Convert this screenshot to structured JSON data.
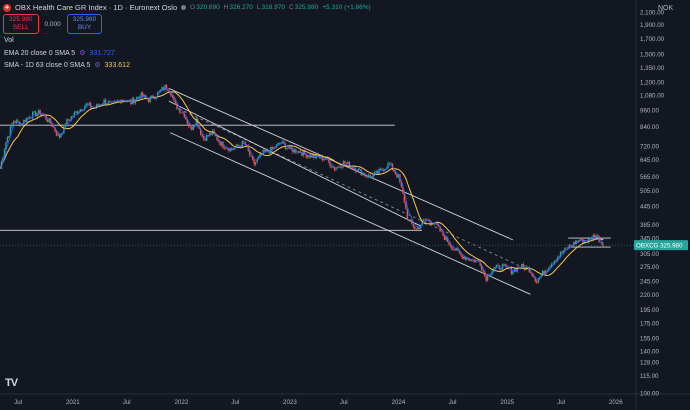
{
  "header": {
    "symbol_title": "OBX Health Care GR Index · 1D · Euronext Oslo",
    "ohlc": [
      {
        "label": "O",
        "value": "320.690"
      },
      {
        "label": "H",
        "value": "326.270"
      },
      {
        "label": "L",
        "value": "318.970"
      },
      {
        "label": "C",
        "value": "325.980"
      }
    ],
    "change": "+5.310 (+1.66%)",
    "sell_price": "325.980",
    "sell_label": "SELL",
    "spread": "0.000",
    "buy_price": "325.980",
    "buy_label": "BUY"
  },
  "indicators": {
    "vol_label": "Vol",
    "ema_label": "EMA 20 close 0 SMA 5",
    "ema_value": "331.727",
    "sma_label": "SMA - 1D 63 close 0 SMA 5",
    "sma_value": "333.612"
  },
  "price_axis": {
    "currency": "NOK"
  },
  "last_price": {
    "ticker": "OBXCG",
    "value": "325.980"
  },
  "colors": {
    "background": "#131722",
    "candle_up": "#26a69a",
    "candle_down": "#ef5350",
    "ema": "#2962ff",
    "sma": "#f7c948",
    "lines": "#d1d4dc",
    "text": "#b2b5be"
  },
  "chart_data": {
    "type": "candlestick",
    "title": "OBX Health Care GR Index · 1D · Euronext Oslo",
    "y_scale": "log",
    "ylim": [
      100,
      2100
    ],
    "xlim": [
      "2020-05-01",
      "2026-03-10"
    ],
    "y_ticks": [
      "2,100.00",
      "1,900.00",
      "1,700.00",
      "1,500.00",
      "1,350.00",
      "1,200.00",
      "1,080.00",
      "960.00",
      "840.00",
      "720.00",
      "645.00",
      "565.00",
      "505.00",
      "445.00",
      "385.00",
      "345.00",
      "305.00",
      "275.00",
      "245.00",
      "220.00",
      "195.00",
      "175.00",
      "155.00",
      "140.00",
      "128.00",
      "115.00",
      "100.00"
    ],
    "x_ticks": [
      {
        "date": "2020-07-01",
        "label": "Jul"
      },
      {
        "date": "2021-01-01",
        "label": "2021"
      },
      {
        "date": "2021-07-01",
        "label": "Jul"
      },
      {
        "date": "2022-01-01",
        "label": "2022"
      },
      {
        "date": "2022-07-01",
        "label": "Jul"
      },
      {
        "date": "2023-01-01",
        "label": "2023"
      },
      {
        "date": "2023-07-01",
        "label": "Jul"
      },
      {
        "date": "2024-01-01",
        "label": "2024"
      },
      {
        "date": "2024-07-01",
        "label": "Jul"
      },
      {
        "date": "2025-01-01",
        "label": "2025"
      },
      {
        "date": "2025-07-01",
        "label": "Jul"
      },
      {
        "date": "2026-01-01",
        "label": "2026"
      }
    ],
    "price_path": [
      [
        "2020-05-01",
        600
      ],
      [
        "2020-05-20",
        740
      ],
      [
        "2020-06-15",
        880
      ],
      [
        "2020-07-10",
        860
      ],
      [
        "2020-08-10",
        920
      ],
      [
        "2020-09-15",
        940
      ],
      [
        "2020-10-20",
        860
      ],
      [
        "2020-11-15",
        770
      ],
      [
        "2020-12-10",
        870
      ],
      [
        "2021-01-15",
        950
      ],
      [
        "2021-02-15",
        1000
      ],
      [
        "2021-03-15",
        975
      ],
      [
        "2021-04-15",
        1030
      ],
      [
        "2021-05-15",
        1000
      ],
      [
        "2021-06-15",
        1050
      ],
      [
        "2021-07-15",
        1020
      ],
      [
        "2021-08-15",
        1080
      ],
      [
        "2021-09-15",
        1040
      ],
      [
        "2021-10-15",
        1100
      ],
      [
        "2021-11-10",
        1160
      ],
      [
        "2021-11-25",
        1120
      ],
      [
        "2021-12-10",
        1000
      ],
      [
        "2022-01-10",
        930
      ],
      [
        "2022-02-01",
        820
      ],
      [
        "2022-02-20",
        890
      ],
      [
        "2022-03-15",
        760
      ],
      [
        "2022-04-15",
        800
      ],
      [
        "2022-05-15",
        730
      ],
      [
        "2022-06-20",
        700
      ],
      [
        "2022-08-01",
        740
      ],
      [
        "2022-09-01",
        620
      ],
      [
        "2022-10-01",
        680
      ],
      [
        "2022-11-01",
        700
      ],
      [
        "2022-12-01",
        740
      ],
      [
        "2023-01-01",
        700
      ],
      [
        "2023-02-01",
        690
      ],
      [
        "2023-03-01",
        670
      ],
      [
        "2023-04-01",
        660
      ],
      [
        "2023-05-01",
        650
      ],
      [
        "2023-06-01",
        600
      ],
      [
        "2023-07-01",
        630
      ],
      [
        "2023-08-01",
        610
      ],
      [
        "2023-09-01",
        580
      ],
      [
        "2023-10-01",
        560
      ],
      [
        "2023-11-01",
        590
      ],
      [
        "2023-12-01",
        625
      ],
      [
        "2024-01-01",
        560
      ],
      [
        "2024-01-20",
        470
      ],
      [
        "2024-02-01",
        400
      ],
      [
        "2024-03-01",
        370
      ],
      [
        "2024-04-01",
        400
      ],
      [
        "2024-05-01",
        390
      ],
      [
        "2024-06-01",
        350
      ],
      [
        "2024-07-01",
        320
      ],
      [
        "2024-08-01",
        300
      ],
      [
        "2024-09-01",
        290
      ],
      [
        "2024-10-01",
        285
      ],
      [
        "2024-10-20",
        250
      ],
      [
        "2024-11-15",
        270
      ],
      [
        "2024-12-15",
        275
      ],
      [
        "2025-01-15",
        265
      ],
      [
        "2025-02-15",
        275
      ],
      [
        "2025-03-15",
        270
      ],
      [
        "2025-04-10",
        245
      ],
      [
        "2025-05-01",
        260
      ],
      [
        "2025-06-01",
        285
      ],
      [
        "2025-07-01",
        305
      ],
      [
        "2025-08-01",
        325
      ],
      [
        "2025-09-01",
        340
      ],
      [
        "2025-10-01",
        338
      ],
      [
        "2025-10-25",
        355
      ],
      [
        "2025-11-20",
        325.98
      ]
    ],
    "horizontal_levels": [
      {
        "price": 850,
        "from": "2020-05-01",
        "to": "2023-12-20"
      },
      {
        "price": 367,
        "from": "2020-05-01",
        "to": "2024-03-20"
      },
      {
        "price": 345,
        "from": "2025-07-25",
        "to": "2025-12-15"
      },
      {
        "price": 321,
        "from": "2025-07-25",
        "to": "2025-12-15"
      }
    ],
    "channel": {
      "upper": [
        [
          "2021-11-20",
          1140
        ],
        [
          "2025-01-20",
          340
        ]
      ],
      "lower": [
        [
          "2021-11-20",
          1030
        ],
        [
          "2024-03-15",
          380
        ]
      ],
      "bottom": [
        [
          "2021-11-25",
          800
        ],
        [
          "2025-03-20",
          220
        ]
      ],
      "mid_dashed": [
        [
          "2022-01-10",
          950
        ],
        [
          "2025-02-15",
          275
        ]
      ]
    }
  }
}
